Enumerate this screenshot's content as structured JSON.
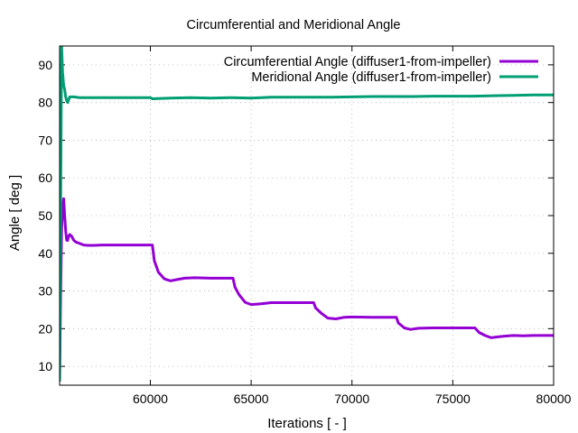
{
  "chart_data": {
    "type": "line",
    "title": "Circumferential and Meridional Angle",
    "xlabel": "Iterations [ - ]",
    "ylabel": "Angle [ deg ]",
    "xlim": [
      55500,
      80000
    ],
    "ylim": [
      5,
      95
    ],
    "xticks": [
      60000,
      65000,
      70000,
      75000,
      80000
    ],
    "yticks": [
      10,
      20,
      30,
      40,
      50,
      60,
      70,
      80,
      90
    ],
    "grid": true,
    "legend_position": "top-right",
    "series": [
      {
        "name": "Circumferential Angle (diffuser1-from-impeller)",
        "color": "#9400d3",
        "x": [
          55500,
          55550,
          55600,
          55650,
          55700,
          55750,
          55800,
          55850,
          55900,
          55950,
          56000,
          56100,
          56200,
          56300,
          56400,
          56500,
          56600,
          56700,
          56900,
          57200,
          57600,
          58000,
          59000,
          60100,
          60200,
          60400,
          60700,
          61000,
          61300,
          61700,
          62200,
          63000,
          64100,
          64200,
          64400,
          64700,
          65000,
          65500,
          66000,
          67000,
          68100,
          68200,
          68500,
          68800,
          69200,
          69600,
          70000,
          71000,
          72200,
          72300,
          72600,
          72900,
          73300,
          74000,
          75000,
          76100,
          76300,
          76600,
          76900,
          77200,
          77500,
          78000,
          78500,
          79000,
          80000
        ],
        "values": [
          6,
          28,
          46,
          52,
          54.5,
          50,
          46,
          43.5,
          43.4,
          44.5,
          45,
          44.5,
          43.5,
          43,
          42.8,
          42.6,
          42.4,
          42.2,
          42.1,
          42.1,
          42.2,
          42.2,
          42.2,
          42.2,
          38,
          35,
          33.2,
          32.7,
          33,
          33.4,
          33.5,
          33.4,
          33.4,
          31,
          29,
          27,
          26.4,
          26.6,
          26.9,
          26.9,
          26.9,
          25.5,
          24,
          22.8,
          22.6,
          23,
          23.1,
          23,
          23,
          21.5,
          20.2,
          19.8,
          20.1,
          20.2,
          20.2,
          20.2,
          19,
          18.2,
          17.6,
          17.8,
          18,
          18.2,
          18.1,
          18.2,
          18.2
        ]
      },
      {
        "name": "Meridional Angle (diffuser1-from-impeller)",
        "color": "#009e73",
        "x": [
          55500,
          55550,
          55600,
          55650,
          55700,
          55750,
          55800,
          55850,
          55900,
          56000,
          56200,
          56500,
          57000,
          58000,
          60000,
          60100,
          61000,
          62000,
          63000,
          64000,
          65000,
          66000,
          67000,
          68000,
          69000,
          70000,
          71000,
          72000,
          73000,
          74000,
          75000,
          76000,
          77000,
          78000,
          79000,
          80000
        ],
        "values": [
          6,
          50,
          95,
          88,
          84.5,
          83.5,
          81.5,
          80.5,
          80,
          81.5,
          81.5,
          81.3,
          81.3,
          81.3,
          81.3,
          81,
          81.2,
          81.3,
          81.2,
          81.3,
          81.2,
          81.4,
          81.4,
          81.4,
          81.4,
          81.5,
          81.6,
          81.6,
          81.6,
          81.7,
          81.7,
          81.7,
          81.8,
          81.9,
          82,
          82
        ]
      }
    ]
  }
}
